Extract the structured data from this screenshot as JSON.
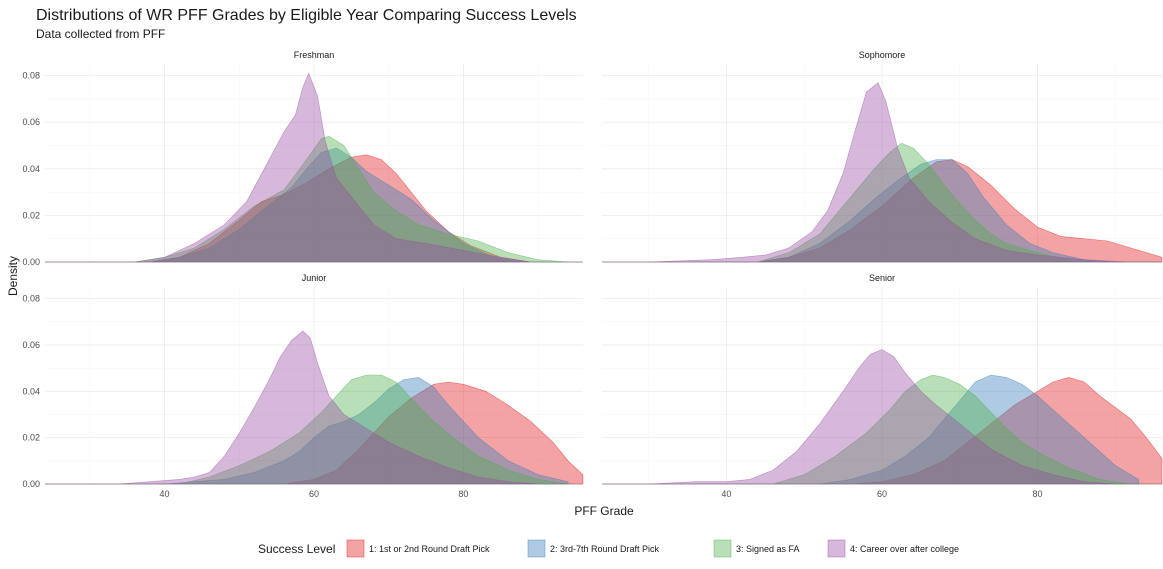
{
  "chart_data": {
    "type": "area",
    "title": "Distributions of WR PFF Grades by Eligible Year Comparing Success Levels",
    "subtitle": "Data collected from PFF",
    "xlabel": "PFF Grade",
    "ylabel": "Density",
    "xlim": [
      24,
      96
    ],
    "ylim": [
      0,
      0.085
    ],
    "x_ticks": [
      40,
      60,
      80
    ],
    "y_ticks": [
      0.0,
      0.02,
      0.04,
      0.06,
      0.08
    ],
    "y_tick_labels": [
      "0.00",
      "0.02",
      "0.04",
      "0.06",
      "0.08"
    ],
    "grid": true,
    "legend": {
      "title": "Success Level",
      "position": "bottom",
      "entries": [
        "1: 1st or 2nd Round Draft Pick",
        "2: 3rd-7th Round Draft Pick",
        "3: Signed as FA",
        "4: Career over after college"
      ]
    },
    "colors": [
      "#e41a1c",
      "#377eb8",
      "#4daf4a",
      "#984ea3"
    ],
    "fill_opacity": 0.4,
    "panels": [
      {
        "name": "Freshman",
        "series": [
          {
            "name": "1: 1st or 2nd Round Draft Pick",
            "x": [
              38,
              42,
              46,
              50,
              53,
              56,
              59,
              62,
              65,
              67,
              69,
              71,
              73,
              75,
              78,
              81,
              85,
              89
            ],
            "y": [
              0,
              0.002,
              0.008,
              0.018,
              0.026,
              0.029,
              0.034,
              0.04,
              0.045,
              0.046,
              0.044,
              0.038,
              0.03,
              0.022,
              0.013,
              0.007,
              0.002,
              0
            ]
          },
          {
            "name": "2: 3rd-7th Round Draft Pick",
            "x": [
              38,
              42,
              46,
              50,
              53,
              55,
              57,
              59,
              61,
              63,
              65,
              67,
              70,
              73,
              76,
              80,
              84,
              88
            ],
            "y": [
              0,
              0.002,
              0.006,
              0.014,
              0.022,
              0.027,
              0.032,
              0.04,
              0.047,
              0.049,
              0.045,
              0.039,
              0.033,
              0.027,
              0.018,
              0.008,
              0.002,
              0
            ]
          },
          {
            "name": "3: Signed as FA",
            "x": [
              36,
              40,
              44,
              48,
              52,
              56,
              59,
              61,
              62,
              64,
              66,
              68,
              71,
              74,
              78,
              82,
              86,
              90,
              94
            ],
            "y": [
              0,
              0.002,
              0.006,
              0.014,
              0.024,
              0.031,
              0.044,
              0.053,
              0.054,
              0.05,
              0.04,
              0.03,
              0.022,
              0.016,
              0.012,
              0.009,
              0.004,
              0.001,
              0
            ]
          },
          {
            "name": "4: Career over after college",
            "x": [
              36,
              40,
              44,
              48,
              51,
              54,
              56,
              57.5,
              58.5,
              59.3,
              60.5,
              61.5,
              63,
              65,
              68,
              71,
              75,
              80,
              85,
              89
            ],
            "y": [
              0,
              0.002,
              0.008,
              0.016,
              0.026,
              0.044,
              0.056,
              0.063,
              0.075,
              0.081,
              0.071,
              0.052,
              0.036,
              0.028,
              0.016,
              0.01,
              0.008,
              0.005,
              0.002,
              0
            ]
          }
        ]
      },
      {
        "name": "Sophomore",
        "series": [
          {
            "name": "1: 1st or 2nd Round Draft Pick",
            "x": [
              44,
              48,
              52,
              56,
              60,
              64,
              67,
              69,
              71,
              74,
              77,
              80,
              83,
              86,
              89,
              92,
              96
            ],
            "y": [
              0,
              0.002,
              0.006,
              0.014,
              0.024,
              0.036,
              0.043,
              0.044,
              0.041,
              0.033,
              0.023,
              0.015,
              0.011,
              0.01,
              0.009,
              0.006,
              0.002
            ]
          },
          {
            "name": "2: 3rd-7th Round Draft Pick",
            "x": [
              44,
              48,
              52,
              56,
              59,
              62,
              65,
              67,
              69,
              71,
              73,
              76,
              79,
              82,
              86,
              90
            ],
            "y": [
              0,
              0.002,
              0.008,
              0.018,
              0.027,
              0.035,
              0.042,
              0.044,
              0.044,
              0.038,
              0.028,
              0.016,
              0.008,
              0.004,
              0.001,
              0
            ]
          },
          {
            "name": "3: Signed as FA",
            "x": [
              44,
              48,
              52,
              55,
              57,
              59,
              61,
              62.5,
              64,
              66,
              68,
              70,
              72,
              74,
              76,
              80,
              84,
              88
            ],
            "y": [
              0,
              0.004,
              0.012,
              0.024,
              0.032,
              0.04,
              0.047,
              0.051,
              0.049,
              0.042,
              0.033,
              0.025,
              0.018,
              0.012,
              0.008,
              0.004,
              0.001,
              0
            ]
          },
          {
            "name": "4: Career over after college",
            "x": [
              30,
              38,
              42,
              45,
              48,
              51,
              53,
              55,
              56.5,
              58,
              59.5,
              60.5,
              62,
              63.5,
              66,
              69,
              72,
              76,
              80,
              86,
              92
            ],
            "y": [
              0,
              0.001,
              0.002,
              0.003,
              0.006,
              0.013,
              0.022,
              0.038,
              0.056,
              0.073,
              0.077,
              0.069,
              0.049,
              0.036,
              0.026,
              0.017,
              0.01,
              0.005,
              0.003,
              0.001,
              0
            ]
          }
        ]
      },
      {
        "name": "Junior",
        "series": [
          {
            "name": "1: 1st or 2nd Round Draft Pick",
            "x": [
              56,
              60,
              63,
              66,
              68,
              70,
              73,
              76,
              78,
              80,
              83,
              86,
              89,
              92,
              94,
              96
            ],
            "y": [
              0,
              0.002,
              0.006,
              0.015,
              0.022,
              0.029,
              0.037,
              0.043,
              0.044,
              0.043,
              0.04,
              0.034,
              0.027,
              0.018,
              0.01,
              0.004
            ]
          },
          {
            "name": "2: 3rd-7th Round Draft Pick",
            "x": [
              40,
              44,
              48,
              52,
              56,
              58,
              60,
              62,
              64,
              66,
              68,
              70,
              72,
              74,
              76,
              78,
              82,
              86,
              90,
              94
            ],
            "y": [
              0,
              0.001,
              0.002,
              0.005,
              0.01,
              0.014,
              0.02,
              0.025,
              0.027,
              0.03,
              0.035,
              0.041,
              0.045,
              0.046,
              0.042,
              0.034,
              0.02,
              0.01,
              0.004,
              0.001
            ]
          },
          {
            "name": "3: Signed as FA",
            "x": [
              42,
              46,
              50,
              54,
              58,
              61,
              63,
              65,
              67,
              69,
              71,
              73,
              76,
              79,
              82,
              86,
              90,
              94
            ],
            "y": [
              0,
              0.003,
              0.008,
              0.014,
              0.022,
              0.031,
              0.038,
              0.045,
              0.047,
              0.047,
              0.044,
              0.037,
              0.027,
              0.019,
              0.012,
              0.006,
              0.002,
              0
            ]
          },
          {
            "name": "4: Career over after college",
            "x": [
              34,
              38,
              42,
              44,
              46,
              48,
              50,
              52,
              54,
              55.5,
              57,
              58.5,
              59.5,
              60.5,
              62,
              64,
              67,
              70,
              74,
              78,
              82,
              86,
              90
            ],
            "y": [
              0,
              0.001,
              0.002,
              0.003,
              0.005,
              0.012,
              0.022,
              0.033,
              0.045,
              0.055,
              0.062,
              0.066,
              0.063,
              0.052,
              0.038,
              0.03,
              0.024,
              0.018,
              0.012,
              0.007,
              0.003,
              0.001,
              0
            ]
          }
        ]
      },
      {
        "name": "Senior",
        "series": [
          {
            "name": "1: 1st or 2nd Round Draft Pick",
            "x": [
              56,
              60,
              64,
              68,
              71,
              74,
              77,
              80,
              82,
              84,
              86,
              88,
              90,
              92,
              94,
              96
            ],
            "y": [
              0,
              0.001,
              0.004,
              0.01,
              0.018,
              0.026,
              0.034,
              0.04,
              0.044,
              0.046,
              0.044,
              0.038,
              0.033,
              0.028,
              0.02,
              0.011
            ]
          },
          {
            "name": "2: 3rd-7th Round Draft Pick",
            "x": [
              52,
              56,
              60,
              63,
              66,
              68,
              70,
              72,
              74,
              76,
              78,
              80,
              82,
              84,
              86,
              88,
              90,
              93
            ],
            "y": [
              0,
              0.002,
              0.006,
              0.012,
              0.02,
              0.028,
              0.036,
              0.044,
              0.047,
              0.046,
              0.043,
              0.038,
              0.032,
              0.026,
              0.02,
              0.014,
              0.008,
              0.002
            ]
          },
          {
            "name": "3: Signed as FA",
            "x": [
              46,
              50,
              54,
              58,
              61,
              63,
              65,
              66.5,
              68,
              70,
              72,
              74,
              76,
              78,
              81,
              84,
              88,
              92
            ],
            "y": [
              0,
              0.004,
              0.012,
              0.022,
              0.032,
              0.04,
              0.045,
              0.047,
              0.046,
              0.043,
              0.038,
              0.031,
              0.024,
              0.018,
              0.012,
              0.007,
              0.002,
              0
            ]
          },
          {
            "name": "4: Career over after college",
            "x": [
              30,
              36,
              40,
              43,
              46,
              49,
              52,
              55,
              57,
              58.5,
              60,
              61.5,
              63,
              65,
              67,
              70,
              74,
              78,
              82,
              86,
              90
            ],
            "y": [
              0,
              0.001,
              0.001,
              0.002,
              0.006,
              0.014,
              0.026,
              0.04,
              0.05,
              0.056,
              0.058,
              0.055,
              0.048,
              0.04,
              0.034,
              0.026,
              0.015,
              0.008,
              0.004,
              0.001,
              0
            ]
          }
        ]
      }
    ]
  }
}
